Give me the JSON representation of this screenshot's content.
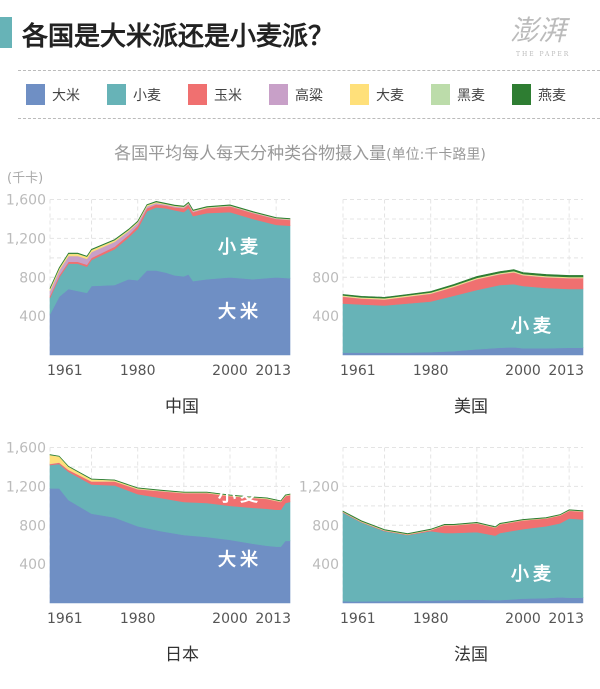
{
  "header": {
    "title": "各国是大米派还是小麦派？",
    "logo_text": "澎湃",
    "logo_sub": "THE PAPER",
    "accent": "#67b3b7"
  },
  "legend": [
    {
      "label": "大米",
      "color": "#6f8fc4"
    },
    {
      "label": "小麦",
      "color": "#67b3b7"
    },
    {
      "label": "玉米",
      "color": "#f07070"
    },
    {
      "label": "高粱",
      "color": "#c8a0c8"
    },
    {
      "label": "大麦",
      "color": "#ffe07a"
    },
    {
      "label": "黑麦",
      "color": "#bcdcaa"
    },
    {
      "label": "燕麦",
      "color": "#2e7d32"
    }
  ],
  "subtitle": "各国平均每人每天分种类谷物摄入量",
  "subtitle_unit": "(单位:千卡路里)",
  "y_unit": "(千卡)",
  "chart_data": [
    {
      "type": "area",
      "stacked": true,
      "title": "中国",
      "xlim": [
        1961,
        2013
      ],
      "ylim": [
        0,
        1600
      ],
      "grid": true,
      "x_ticks": [
        "1961",
        "1980",
        "2000",
        "2013"
      ],
      "y_ticks": [
        "400",
        "800",
        "1,200",
        "1,600"
      ],
      "annotations": [
        "小麦",
        "大米"
      ],
      "x": [
        1961,
        1963,
        1965,
        1967,
        1969,
        1970,
        1975,
        1978,
        1980,
        1982,
        1984,
        1986,
        1988,
        1990,
        1991,
        1992,
        1995,
        2000,
        2005,
        2010,
        2013
      ],
      "series": [
        {
          "name": "大米",
          "values": [
            420,
            600,
            680,
            660,
            640,
            710,
            720,
            780,
            770,
            870,
            870,
            850,
            820,
            810,
            830,
            760,
            780,
            800,
            780,
            800,
            790
          ]
        },
        {
          "name": "小麦",
          "values": [
            170,
            200,
            260,
            280,
            270,
            270,
            370,
            430,
            530,
            610,
            650,
            660,
            670,
            660,
            680,
            670,
            680,
            670,
            620,
            540,
            540
          ]
        },
        {
          "name": "玉米",
          "values": [
            20,
            20,
            20,
            20,
            20,
            20,
            25,
            25,
            30,
            30,
            30,
            30,
            30,
            40,
            40,
            40,
            50,
            60,
            60,
            60,
            60
          ]
        },
        {
          "name": "高粱",
          "values": [
            50,
            50,
            60,
            60,
            60,
            60,
            50,
            40,
            30,
            20,
            15,
            10,
            10,
            10,
            10,
            10,
            5,
            5,
            5,
            5,
            5
          ]
        },
        {
          "name": "大麦",
          "values": [
            20,
            20,
            20,
            20,
            20,
            20,
            15,
            10,
            10,
            10,
            8,
            5,
            5,
            5,
            5,
            5,
            5,
            3,
            3,
            3,
            3
          ]
        },
        {
          "name": "黑麦",
          "values": [
            3,
            3,
            3,
            3,
            3,
            3,
            3,
            3,
            3,
            3,
            3,
            2,
            2,
            2,
            2,
            2,
            2,
            2,
            2,
            2,
            2
          ]
        },
        {
          "name": "燕麦",
          "values": [
            5,
            5,
            5,
            5,
            5,
            5,
            5,
            5,
            5,
            5,
            5,
            5,
            5,
            5,
            5,
            5,
            5,
            5,
            5,
            5,
            5
          ]
        }
      ]
    },
    {
      "type": "area",
      "stacked": true,
      "title": "美国",
      "xlim": [
        1961,
        2013
      ],
      "ylim": [
        0,
        1600
      ],
      "grid": true,
      "x_ticks": [
        "1961",
        "1980",
        "2000",
        "2013"
      ],
      "y_ticks": [
        "400",
        "800"
      ],
      "annotations": [
        "小麦"
      ],
      "x": [
        1961,
        1965,
        1970,
        1975,
        1980,
        1985,
        1990,
        1995,
        1998,
        2000,
        2005,
        2010,
        2013
      ],
      "series": [
        {
          "name": "大米",
          "values": [
            25,
            25,
            25,
            25,
            30,
            40,
            60,
            75,
            80,
            70,
            70,
            75,
            75
          ]
        },
        {
          "name": "小麦",
          "values": [
            505,
            495,
            485,
            505,
            520,
            570,
            610,
            645,
            650,
            640,
            620,
            605,
            605
          ]
        },
        {
          "name": "玉米",
          "values": [
            70,
            60,
            60,
            70,
            80,
            90,
            110,
            110,
            120,
            110,
            110,
            110,
            110
          ]
        },
        {
          "name": "高粱",
          "values": [
            3,
            3,
            3,
            3,
            3,
            3,
            3,
            3,
            3,
            3,
            3,
            3,
            3
          ]
        },
        {
          "name": "大麦",
          "values": [
            8,
            8,
            8,
            8,
            8,
            8,
            8,
            8,
            8,
            8,
            8,
            8,
            8
          ]
        },
        {
          "name": "黑麦",
          "values": [
            3,
            3,
            3,
            3,
            3,
            3,
            3,
            3,
            3,
            3,
            3,
            3,
            3
          ]
        },
        {
          "name": "燕麦",
          "values": [
            10,
            10,
            10,
            10,
            10,
            12,
            15,
            15,
            15,
            15,
            15,
            15,
            15
          ]
        }
      ]
    },
    {
      "type": "area",
      "stacked": true,
      "title": "日本",
      "xlim": [
        1961,
        2013
      ],
      "ylim": [
        0,
        1600
      ],
      "grid": true,
      "x_ticks": [
        "1961",
        "1980",
        "2000",
        "2013"
      ],
      "y_ticks": [
        "400",
        "800",
        "1,200",
        "1,600"
      ],
      "annotations": [
        "小麦",
        "大米"
      ],
      "x": [
        1961,
        1963,
        1965,
        1970,
        1975,
        1980,
        1985,
        1990,
        1995,
        2000,
        2005,
        2008,
        2010,
        2011,
        2012,
        2013
      ],
      "series": [
        {
          "name": "大米",
          "values": [
            1180,
            1180,
            1060,
            920,
            880,
            790,
            740,
            700,
            680,
            650,
            610,
            590,
            580,
            580,
            640,
            640
          ]
        },
        {
          "name": "小麦",
          "values": [
            240,
            250,
            290,
            300,
            330,
            330,
            340,
            340,
            350,
            350,
            370,
            380,
            380,
            380,
            390,
            400
          ]
        },
        {
          "name": "玉米",
          "values": [
            10,
            15,
            20,
            30,
            40,
            50,
            70,
            90,
            100,
            100,
            100,
            100,
            90,
            80,
            70,
            70
          ]
        },
        {
          "name": "高粱",
          "values": [
            2,
            2,
            2,
            2,
            2,
            2,
            2,
            2,
            2,
            2,
            2,
            2,
            2,
            2,
            2,
            2
          ]
        },
        {
          "name": "大麦",
          "values": [
            90,
            60,
            30,
            20,
            10,
            8,
            5,
            5,
            5,
            5,
            5,
            5,
            5,
            5,
            5,
            5
          ]
        },
        {
          "name": "黑麦",
          "values": [
            2,
            2,
            2,
            2,
            2,
            2,
            2,
            2,
            2,
            2,
            2,
            2,
            2,
            2,
            2,
            2
          ]
        },
        {
          "name": "燕麦",
          "values": [
            3,
            3,
            3,
            3,
            3,
            3,
            3,
            3,
            3,
            3,
            3,
            3,
            3,
            3,
            3,
            3
          ]
        }
      ]
    },
    {
      "type": "area",
      "stacked": true,
      "title": "法国",
      "xlim": [
        1961,
        2013
      ],
      "ylim": [
        0,
        1600
      ],
      "grid": true,
      "x_ticks": [
        "1961",
        "1980",
        "2000",
        "2013"
      ],
      "y_ticks": [
        "400",
        "800",
        "1,200"
      ],
      "annotations": [
        "小麦"
      ],
      "x": [
        1961,
        1963,
        1965,
        1970,
        1975,
        1980,
        1983,
        1985,
        1990,
        1994,
        1995,
        2000,
        2005,
        2008,
        2010,
        2013
      ],
      "series": [
        {
          "name": "大米",
          "values": [
            20,
            15,
            18,
            20,
            22,
            25,
            28,
            30,
            35,
            30,
            30,
            45,
            50,
            60,
            55,
            55
          ]
        },
        {
          "name": "小麦",
          "values": [
            910,
            865,
            812,
            720,
            678,
            715,
            692,
            690,
            695,
            665,
            690,
            715,
            740,
            760,
            815,
            805
          ]
        },
        {
          "name": "玉米",
          "values": [
            5,
            5,
            5,
            5,
            5,
            10,
            80,
            80,
            90,
            80,
            90,
            90,
            80,
            80,
            80,
            80
          ]
        },
        {
          "name": "高粱",
          "values": [
            1,
            1,
            1,
            1,
            1,
            1,
            1,
            1,
            1,
            1,
            1,
            1,
            1,
            1,
            1,
            1
          ]
        },
        {
          "name": "大麦",
          "values": [
            3,
            3,
            3,
            3,
            3,
            3,
            3,
            3,
            3,
            3,
            3,
            3,
            3,
            3,
            3,
            3
          ]
        },
        {
          "name": "黑麦",
          "values": [
            3,
            3,
            3,
            3,
            2,
            2,
            2,
            2,
            2,
            2,
            2,
            2,
            2,
            2,
            2,
            2
          ]
        },
        {
          "name": "燕麦",
          "values": [
            4,
            4,
            4,
            4,
            4,
            4,
            4,
            4,
            4,
            4,
            4,
            4,
            4,
            4,
            4,
            4
          ]
        }
      ]
    }
  ]
}
